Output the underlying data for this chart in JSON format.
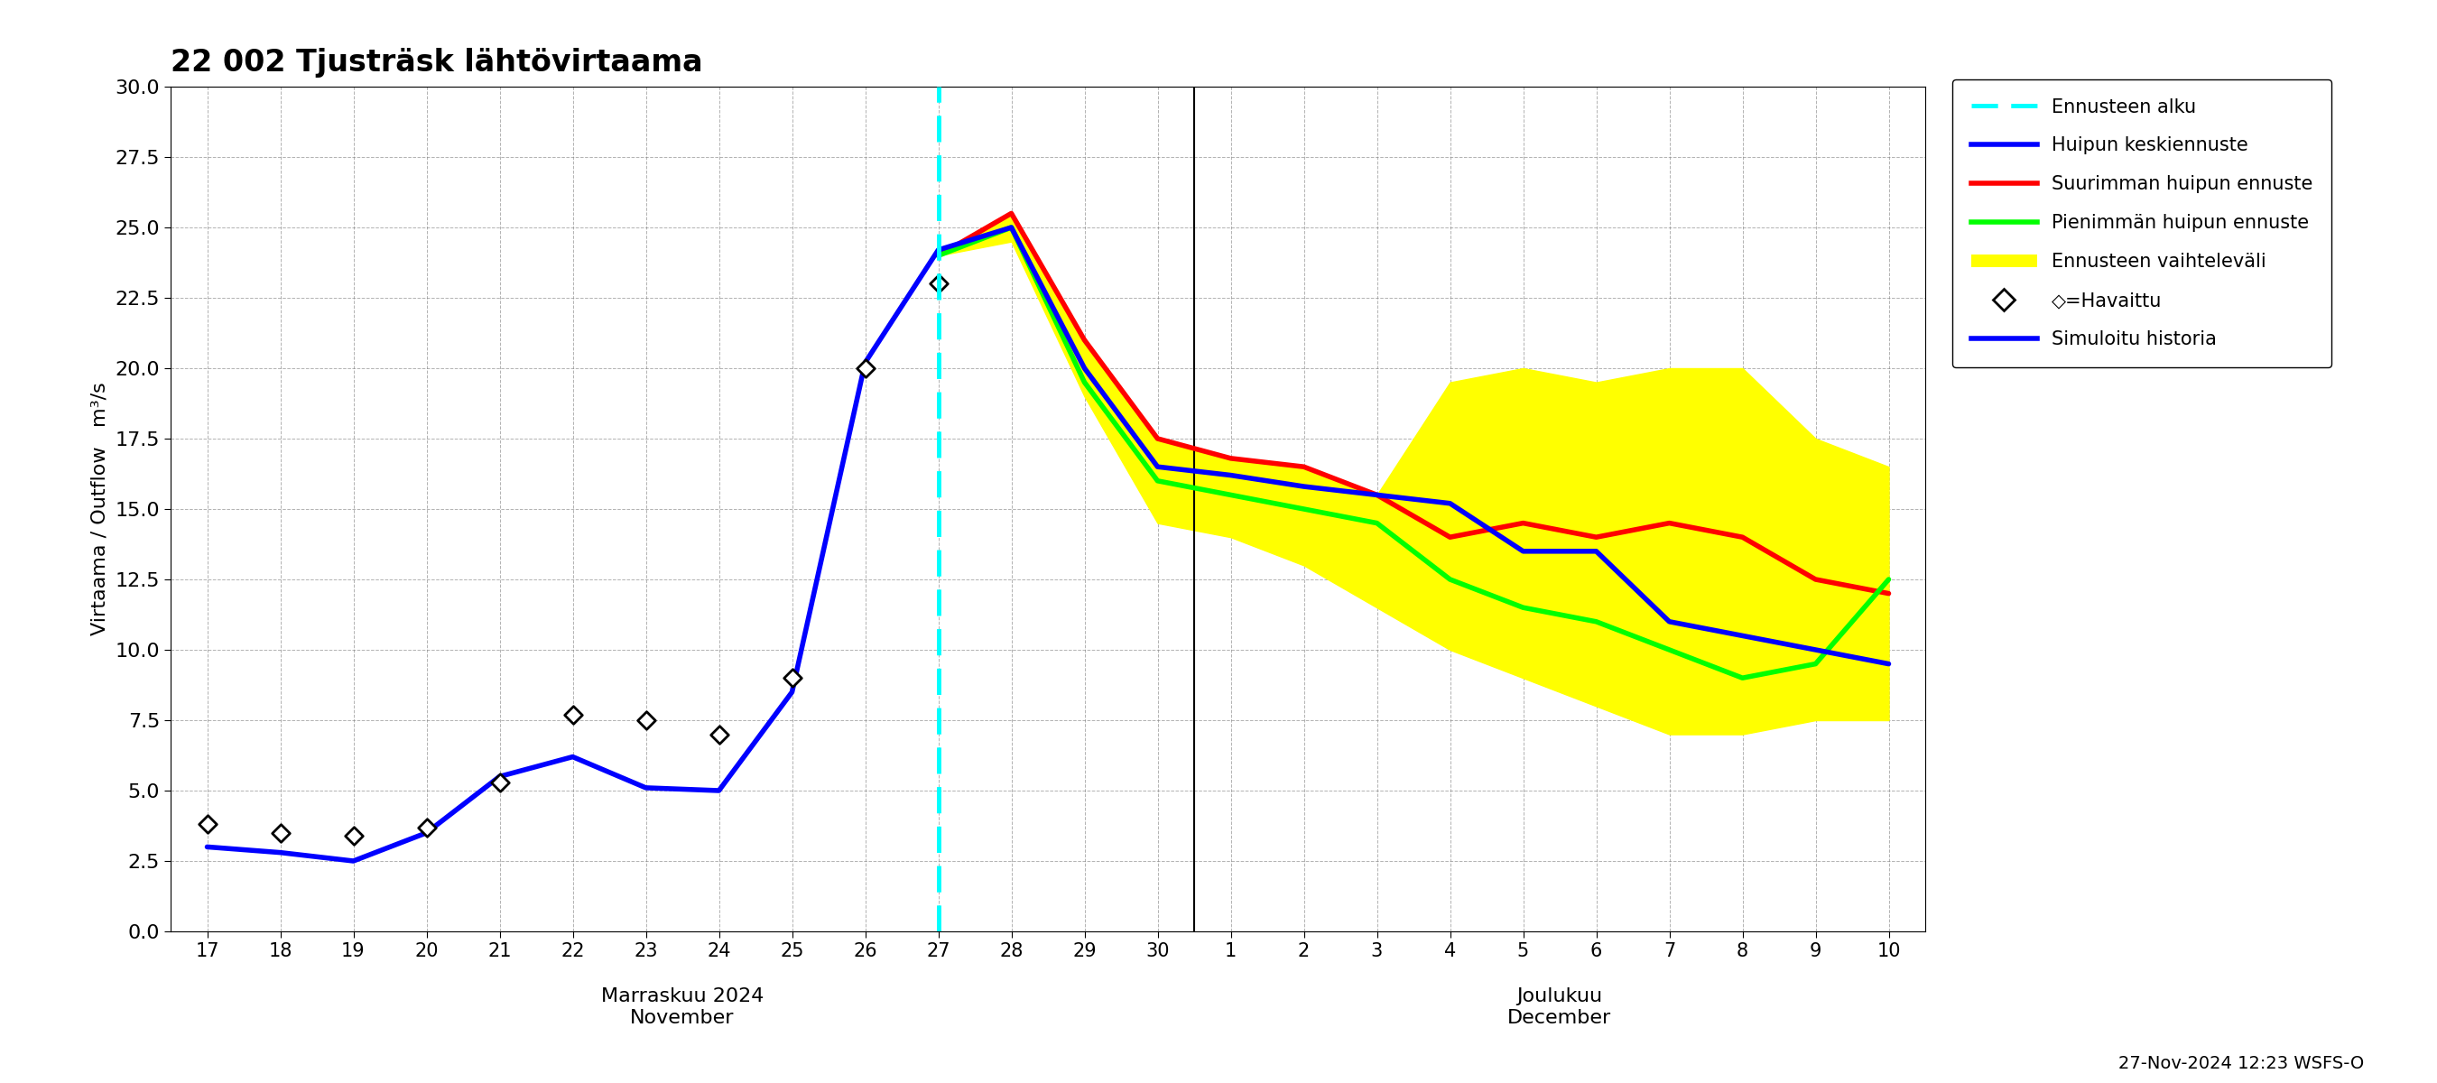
{
  "title": "22 002 Tjusträsk lähtövirtaama",
  "ylabel": "Virtaama / Outflow   m³/s",
  "ylim": [
    0.0,
    30.0
  ],
  "yticks": [
    0.0,
    2.5,
    5.0,
    7.5,
    10.0,
    12.5,
    15.0,
    17.5,
    20.0,
    22.5,
    25.0,
    27.5,
    30.0
  ],
  "x_nov": [
    17,
    18,
    19,
    20,
    21,
    22,
    23,
    24,
    25,
    26,
    27,
    28,
    29,
    30
  ],
  "x_dec": [
    1,
    2,
    3,
    4,
    5,
    6,
    7,
    8,
    9,
    10
  ],
  "blue_line_nov": [
    3.0,
    2.8,
    2.5,
    3.5,
    5.5,
    6.2,
    5.1,
    5.0,
    8.5,
    20.2,
    24.2,
    25.0,
    20.0,
    16.5
  ],
  "blue_line_dec": [
    16.2,
    15.8,
    15.5,
    15.2,
    13.5,
    13.5,
    11.0,
    10.5,
    10.0,
    9.5
  ],
  "red_line_x": [
    27,
    28,
    29,
    30,
    1,
    2,
    3,
    4,
    5,
    6,
    7,
    8,
    9,
    10
  ],
  "red_line_y": [
    24.0,
    25.5,
    21.0,
    17.5,
    16.8,
    16.5,
    15.5,
    14.0,
    14.5,
    14.0,
    14.5,
    14.0,
    12.5,
    12.0
  ],
  "green_line_x": [
    27,
    28,
    29,
    30,
    1,
    2,
    3,
    4,
    5,
    6,
    7,
    8,
    9,
    10
  ],
  "green_line_y": [
    24.0,
    25.0,
    19.5,
    16.0,
    15.5,
    15.0,
    14.5,
    12.5,
    11.5,
    11.0,
    10.0,
    9.0,
    9.5,
    12.5
  ],
  "fill_upper_x": [
    27,
    28,
    29,
    30,
    1,
    2,
    3,
    4,
    5,
    6,
    7,
    8,
    9,
    10
  ],
  "fill_upper_y": [
    24.0,
    25.5,
    21.0,
    17.5,
    16.8,
    16.5,
    15.5,
    19.5,
    20.0,
    19.5,
    20.0,
    20.0,
    17.5,
    16.5
  ],
  "fill_lower_x": [
    27,
    28,
    29,
    30,
    1,
    2,
    3,
    4,
    5,
    6,
    7,
    8,
    9,
    10
  ],
  "fill_lower_y": [
    24.0,
    24.5,
    19.0,
    14.5,
    14.0,
    13.0,
    11.5,
    10.0,
    9.0,
    8.0,
    7.0,
    7.0,
    7.5,
    7.5
  ],
  "observed_x": [
    17,
    18,
    19,
    20,
    21,
    22,
    23,
    24,
    25,
    26,
    27
  ],
  "observed_y": [
    3.8,
    3.5,
    3.4,
    3.7,
    5.3,
    7.7,
    7.5,
    7.0,
    9.0,
    20.0,
    23.0
  ],
  "bottom_text": "27-Nov-2024 12:23 WSFS-O",
  "xlabel_nov": "Marraskuu 2024\nNovember",
  "xlabel_dec": "Joulukuu\nDecember"
}
